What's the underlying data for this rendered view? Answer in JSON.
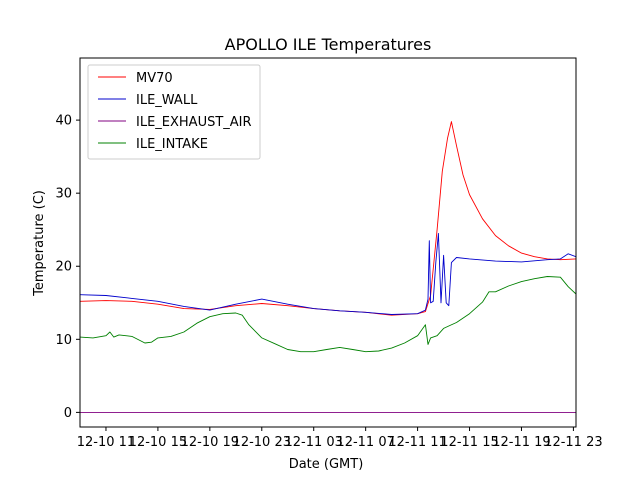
{
  "chart_data": {
    "type": "line",
    "title": "APOLLO ILE Temperatures",
    "xlabel": "Date (GMT)",
    "ylabel": "Temperature (C)",
    "x_unit": "hours since 12-10 09:00 GMT",
    "xlim": [
      0,
      38.2
    ],
    "ylim": [
      -2,
      48.5
    ],
    "yticks": [
      0,
      10,
      20,
      30,
      40
    ],
    "xticks": [
      {
        "x": 2,
        "label": "12-10 11"
      },
      {
        "x": 6,
        "label": "12-10 15"
      },
      {
        "x": 10,
        "label": "12-10 19"
      },
      {
        "x": 14,
        "label": "12-10 23"
      },
      {
        "x": 18,
        "label": "12-11 03"
      },
      {
        "x": 22,
        "label": "12-11 07"
      },
      {
        "x": 26,
        "label": "12-11 11"
      },
      {
        "x": 30,
        "label": "12-11 15"
      },
      {
        "x": 34,
        "label": "12-11 19"
      },
      {
        "x": 38,
        "label": "12-11 23"
      }
    ],
    "legend_position": "top-left",
    "series": [
      {
        "name": "MV70",
        "color": "#ff0000",
        "x": [
          0,
          2,
          4,
          6,
          8,
          10,
          12,
          14,
          16,
          18,
          20,
          22,
          24,
          26,
          26.6,
          27,
          27.5,
          27.9,
          28.3,
          28.6,
          29,
          29.5,
          30,
          31,
          32,
          33,
          34,
          35,
          36,
          37,
          38.2
        ],
        "values": [
          15.2,
          15.3,
          15.2,
          14.8,
          14.2,
          14.1,
          14.6,
          14.9,
          14.6,
          14.2,
          13.9,
          13.7,
          13.3,
          13.5,
          13.8,
          16,
          25,
          33,
          37.5,
          39.8,
          36.5,
          32.5,
          29.8,
          26.5,
          24.2,
          22.8,
          21.8,
          21.3,
          21.0,
          20.9,
          21.0
        ]
      },
      {
        "name": "ILE_WALL",
        "color": "#0000cc",
        "x": [
          0,
          2,
          4,
          6,
          8,
          10,
          12,
          14,
          16,
          18,
          20,
          22,
          24,
          26,
          26.6,
          26.8,
          26.9,
          27.0,
          27.2,
          27.4,
          27.6,
          27.8,
          28.0,
          28.2,
          28.4,
          28.6,
          29,
          30,
          32,
          34,
          36,
          37,
          37.6,
          38.2
        ],
        "values": [
          16.1,
          16.0,
          15.6,
          15.2,
          14.5,
          14.0,
          14.8,
          15.5,
          14.8,
          14.2,
          13.9,
          13.7,
          13.4,
          13.5,
          14.0,
          15.5,
          23.5,
          15.0,
          15.2,
          20.5,
          24.5,
          15.0,
          21.5,
          15.0,
          14.6,
          20.5,
          21.2,
          21.0,
          20.7,
          20.6,
          20.9,
          21.0,
          21.7,
          21.3
        ]
      },
      {
        "name": "ILE_EXHAUST_AIR",
        "color": "#800080",
        "x": [
          0,
          38.2
        ],
        "values": [
          0,
          0
        ]
      },
      {
        "name": "ILE_INTAKE",
        "color": "#008000",
        "x": [
          0,
          1,
          2,
          2.3,
          2.6,
          3,
          4,
          5,
          5.5,
          6,
          7,
          8,
          9,
          10,
          11,
          12,
          12.5,
          13,
          14,
          15,
          16,
          17,
          18,
          19,
          20,
          21,
          22,
          23,
          24,
          25,
          26,
          26.6,
          26.8,
          27,
          27.5,
          28,
          28.5,
          29,
          30,
          31,
          31.5,
          32,
          33,
          34,
          35,
          36,
          37,
          37.6,
          38.2
        ],
        "values": [
          10.3,
          10.2,
          10.5,
          11.0,
          10.3,
          10.6,
          10.4,
          9.5,
          9.6,
          10.2,
          10.4,
          11.0,
          12.2,
          13.1,
          13.5,
          13.6,
          13.3,
          12.0,
          10.2,
          9.4,
          8.6,
          8.3,
          8.3,
          8.6,
          8.9,
          8.6,
          8.3,
          8.4,
          8.8,
          9.5,
          10.5,
          12.0,
          9.3,
          10.2,
          10.5,
          11.5,
          11.9,
          12.3,
          13.5,
          15.1,
          16.5,
          16.5,
          17.3,
          17.9,
          18.3,
          18.6,
          18.5,
          17.2,
          16.2
        ]
      }
    ]
  }
}
